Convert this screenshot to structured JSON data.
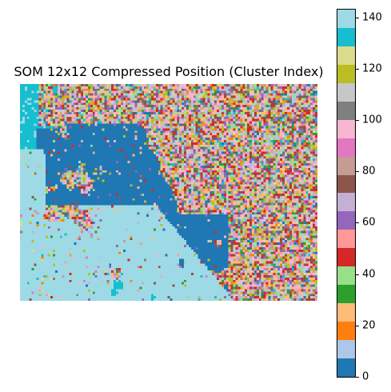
{
  "chart_data": {
    "type": "heatmap",
    "title": "SOM 12x12 Compressed Position (Cluster Index)",
    "colormap": "tab20",
    "value_range": [
      0,
      143
    ],
    "grid_resolution": [
      127,
      93
    ],
    "axes_visible": false,
    "colorbar": {
      "ticks": [
        0,
        20,
        40,
        60,
        80,
        100,
        120,
        140
      ],
      "tick_labels": [
        "0",
        "20",
        "40",
        "60",
        "80",
        "100",
        "120",
        "140"
      ],
      "colors": [
        "#1f77b4",
        "#aec7e8",
        "#ff7f0e",
        "#ffbb78",
        "#2ca02c",
        "#98df8a",
        "#d62728",
        "#ff9896",
        "#9467bd",
        "#c5b0d5",
        "#8c564b",
        "#c49c94",
        "#e377c2",
        "#f7b6d2",
        "#7f7f7f",
        "#c7c7c7",
        "#bcbd22",
        "#dbdb8d",
        "#17becf",
        "#9edae5"
      ]
    },
    "dominant_regions": [
      {
        "color": "#9edae5",
        "approx_index": 140,
        "description": "large light cyan zone lower-left and left edge"
      },
      {
        "color": "#17becf",
        "approx_index": 132,
        "description": "cyan patches top-left and along left edge"
      },
      {
        "color": "#1f77b4",
        "approx_index": 3,
        "description": "large dark blue connected region through center and lower middle"
      },
      {
        "color": "#ffbb78",
        "approx_index": 25,
        "description": "orange fringe around blue region"
      },
      {
        "color": "#8c564b",
        "approx_index": 75,
        "description": "brown cluster upper center"
      }
    ]
  }
}
